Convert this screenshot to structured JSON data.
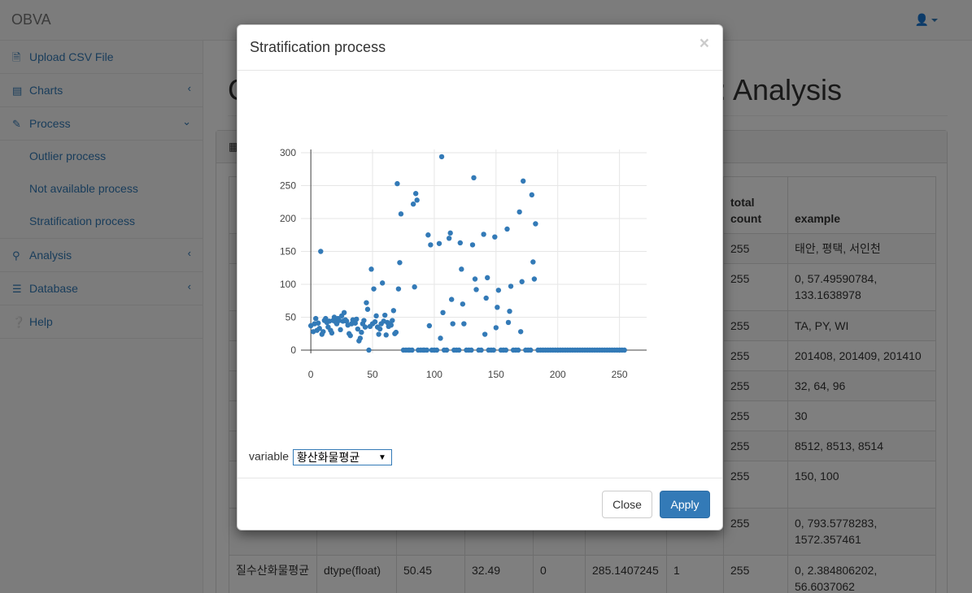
{
  "app": {
    "brand": "OBVA"
  },
  "sidebar": {
    "items": [
      {
        "label": "Upload CSV File",
        "icon": "file-icon",
        "arrow": ""
      },
      {
        "label": "Charts",
        "icon": "chart-icon",
        "arrow": "‹"
      },
      {
        "label": "Process",
        "icon": "pencil-icon",
        "arrow": "⌄"
      },
      {
        "label": "Analysis",
        "icon": "search-icon",
        "arrow": "‹"
      },
      {
        "label": "Database",
        "icon": "database-icon",
        "arrow": "‹"
      },
      {
        "label": "Help",
        "icon": "question-icon",
        "arrow": ""
      }
    ],
    "sub_items": [
      "Outlier process",
      "Not available process",
      "Stratification process"
    ]
  },
  "main": {
    "title_left": "C",
    "title_right": ": Analysis",
    "table": {
      "headers": [
        "total count",
        "example"
      ],
      "rows": [
        [
          "255",
          "태안, 평택, 서인천"
        ],
        [
          "255",
          "0, 57.49590784, 133.1638978"
        ],
        [
          "255",
          "TA, PY, WI"
        ],
        [
          "255",
          "201408, 201409, 201410"
        ],
        [
          "255",
          "32, 64, 96"
        ],
        [
          "255",
          "30"
        ],
        [
          "255",
          "8512, 8513, 8514"
        ],
        [
          "255",
          "150, 100"
        ],
        [
          "255",
          "0, 793.5778283, 1572.357461"
        ]
      ],
      "last_row": [
        "질수산화물평균",
        "dtype(float)",
        "50.45",
        "32.49",
        "0",
        "285.1407245",
        "1",
        "255",
        "0, 2.384806202, 56.6037062"
      ]
    }
  },
  "modal": {
    "title": "Stratification process",
    "close_symbol": "×",
    "variable_label": "variable",
    "variable_value": "황산화물평균",
    "close_button": "Close",
    "apply_button": "Apply"
  },
  "chart_data": {
    "type": "scatter",
    "color": "#337ab7",
    "xlim": [
      -8,
      272
    ],
    "ylim": [
      -5,
      305
    ],
    "xticks": [
      0,
      50,
      100,
      150,
      200,
      250
    ],
    "yticks": [
      0,
      50,
      100,
      150,
      200,
      250,
      300
    ],
    "points": [
      [
        0,
        37
      ],
      [
        2,
        28
      ],
      [
        3,
        40
      ],
      [
        4,
        48
      ],
      [
        5,
        30
      ],
      [
        6,
        41
      ],
      [
        7,
        33
      ],
      [
        8,
        150
      ],
      [
        9,
        24
      ],
      [
        10,
        28
      ],
      [
        11,
        45
      ],
      [
        12,
        48
      ],
      [
        13,
        42
      ],
      [
        14,
        35
      ],
      [
        15,
        44
      ],
      [
        16,
        30
      ],
      [
        17,
        26
      ],
      [
        18,
        45
      ],
      [
        19,
        50
      ],
      [
        20,
        43
      ],
      [
        21,
        40
      ],
      [
        22,
        48
      ],
      [
        23,
        45
      ],
      [
        24,
        31
      ],
      [
        25,
        52
      ],
      [
        26,
        44
      ],
      [
        27,
        57
      ],
      [
        28,
        46
      ],
      [
        29,
        44
      ],
      [
        30,
        38
      ],
      [
        31,
        25
      ],
      [
        32,
        22
      ],
      [
        33,
        40
      ],
      [
        34,
        46
      ],
      [
        35,
        43
      ],
      [
        36,
        41
      ],
      [
        37,
        47
      ],
      [
        38,
        32
      ],
      [
        39,
        14
      ],
      [
        40,
        18
      ],
      [
        41,
        27
      ],
      [
        42,
        40
      ],
      [
        43,
        45
      ],
      [
        44,
        35
      ],
      [
        45,
        72
      ],
      [
        46,
        62
      ],
      [
        47,
        0
      ],
      [
        48,
        36
      ],
      [
        49,
        123
      ],
      [
        50,
        40
      ],
      [
        51,
        93
      ],
      [
        52,
        43
      ],
      [
        53,
        52
      ],
      [
        54,
        35
      ],
      [
        55,
        24
      ],
      [
        56,
        32
      ],
      [
        57,
        40
      ],
      [
        58,
        102
      ],
      [
        59,
        44
      ],
      [
        60,
        53
      ],
      [
        61,
        23
      ],
      [
        62,
        42
      ],
      [
        63,
        36
      ],
      [
        64,
        40
      ],
      [
        65,
        38
      ],
      [
        66,
        45
      ],
      [
        67,
        60
      ],
      [
        68,
        25
      ],
      [
        69,
        27
      ],
      [
        70,
        253
      ],
      [
        71,
        93
      ],
      [
        72,
        133
      ],
      [
        73,
        207
      ],
      [
        75,
        0
      ],
      [
        77,
        0
      ],
      [
        79,
        0
      ],
      [
        80,
        0
      ],
      [
        82,
        0
      ],
      [
        83,
        222
      ],
      [
        84,
        96
      ],
      [
        85,
        238
      ],
      [
        86,
        228
      ],
      [
        87,
        0
      ],
      [
        89,
        0
      ],
      [
        91,
        0
      ],
      [
        92,
        0
      ],
      [
        94,
        0
      ],
      [
        95,
        175
      ],
      [
        96,
        37
      ],
      [
        97,
        160
      ],
      [
        98,
        0
      ],
      [
        100,
        0
      ],
      [
        102,
        0
      ],
      [
        104,
        162
      ],
      [
        105,
        18
      ],
      [
        106,
        294
      ],
      [
        107,
        57
      ],
      [
        108,
        0
      ],
      [
        110,
        0
      ],
      [
        112,
        170
      ],
      [
        113,
        178
      ],
      [
        114,
        77
      ],
      [
        115,
        40
      ],
      [
        116,
        0
      ],
      [
        118,
        0
      ],
      [
        120,
        0
      ],
      [
        121,
        163
      ],
      [
        122,
        123
      ],
      [
        123,
        70
      ],
      [
        124,
        40
      ],
      [
        126,
        0
      ],
      [
        128,
        0
      ],
      [
        130,
        0
      ],
      [
        131,
        160
      ],
      [
        132,
        262
      ],
      [
        133,
        108
      ],
      [
        134,
        92
      ],
      [
        136,
        0
      ],
      [
        138,
        0
      ],
      [
        140,
        176
      ],
      [
        141,
        24
      ],
      [
        142,
        79
      ],
      [
        143,
        110
      ],
      [
        144,
        0
      ],
      [
        146,
        0
      ],
      [
        148,
        0
      ],
      [
        149,
        172
      ],
      [
        150,
        34
      ],
      [
        151,
        65
      ],
      [
        152,
        91
      ],
      [
        154,
        0
      ],
      [
        156,
        0
      ],
      [
        158,
        0
      ],
      [
        159,
        184
      ],
      [
        160,
        42
      ],
      [
        161,
        59
      ],
      [
        162,
        97
      ],
      [
        164,
        0
      ],
      [
        166,
        0
      ],
      [
        168,
        0
      ],
      [
        169,
        210
      ],
      [
        170,
        28
      ],
      [
        171,
        104
      ],
      [
        172,
        257
      ],
      [
        174,
        0
      ],
      [
        176,
        0
      ],
      [
        178,
        0
      ],
      [
        179,
        236
      ],
      [
        180,
        134
      ],
      [
        181,
        108
      ],
      [
        182,
        192
      ],
      [
        184,
        0
      ],
      [
        186,
        0
      ],
      [
        188,
        0
      ],
      [
        190,
        0
      ],
      [
        192,
        0
      ],
      [
        194,
        0
      ],
      [
        196,
        0
      ],
      [
        198,
        0
      ],
      [
        200,
        0
      ],
      [
        202,
        0
      ],
      [
        204,
        0
      ],
      [
        206,
        0
      ],
      [
        208,
        0
      ],
      [
        210,
        0
      ],
      [
        212,
        0
      ],
      [
        214,
        0
      ],
      [
        216,
        0
      ],
      [
        218,
        0
      ],
      [
        220,
        0
      ],
      [
        222,
        0
      ],
      [
        224,
        0
      ],
      [
        226,
        0
      ],
      [
        228,
        0
      ],
      [
        230,
        0
      ],
      [
        232,
        0
      ],
      [
        234,
        0
      ],
      [
        236,
        0
      ],
      [
        238,
        0
      ],
      [
        240,
        0
      ],
      [
        242,
        0
      ],
      [
        244,
        0
      ],
      [
        246,
        0
      ],
      [
        248,
        0
      ],
      [
        250,
        0
      ],
      [
        252,
        0
      ],
      [
        254,
        0
      ]
    ]
  }
}
